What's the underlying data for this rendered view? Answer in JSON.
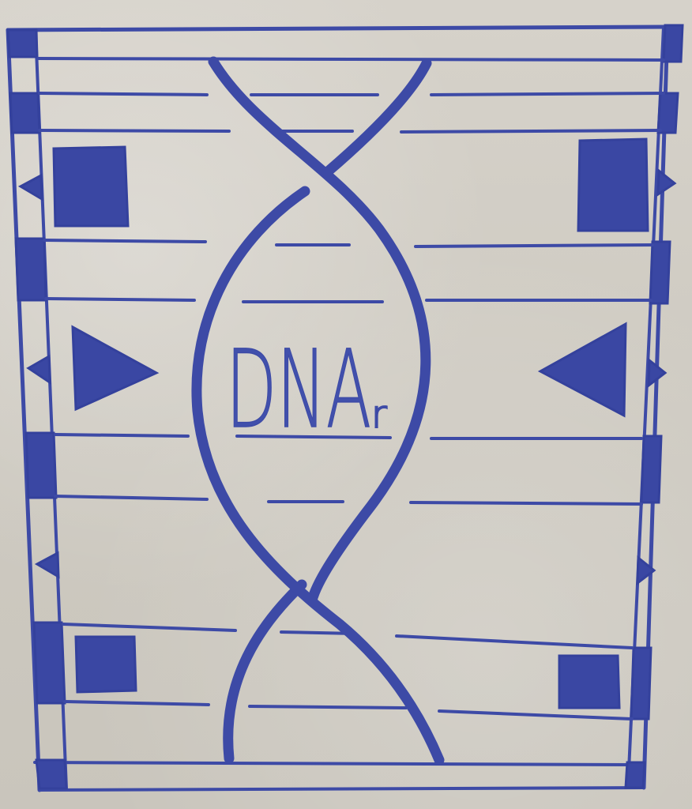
{
  "drawing": {
    "label_main": "DNA",
    "label_sub": "r"
  },
  "colors": {
    "ink": "#3d4aa6",
    "paper": "#cfcbc2"
  },
  "icons": {
    "squares": "filled-square-icon",
    "triangles": "filled-triangle-icon",
    "edge_markers": "small-triangle-notch-icon"
  }
}
